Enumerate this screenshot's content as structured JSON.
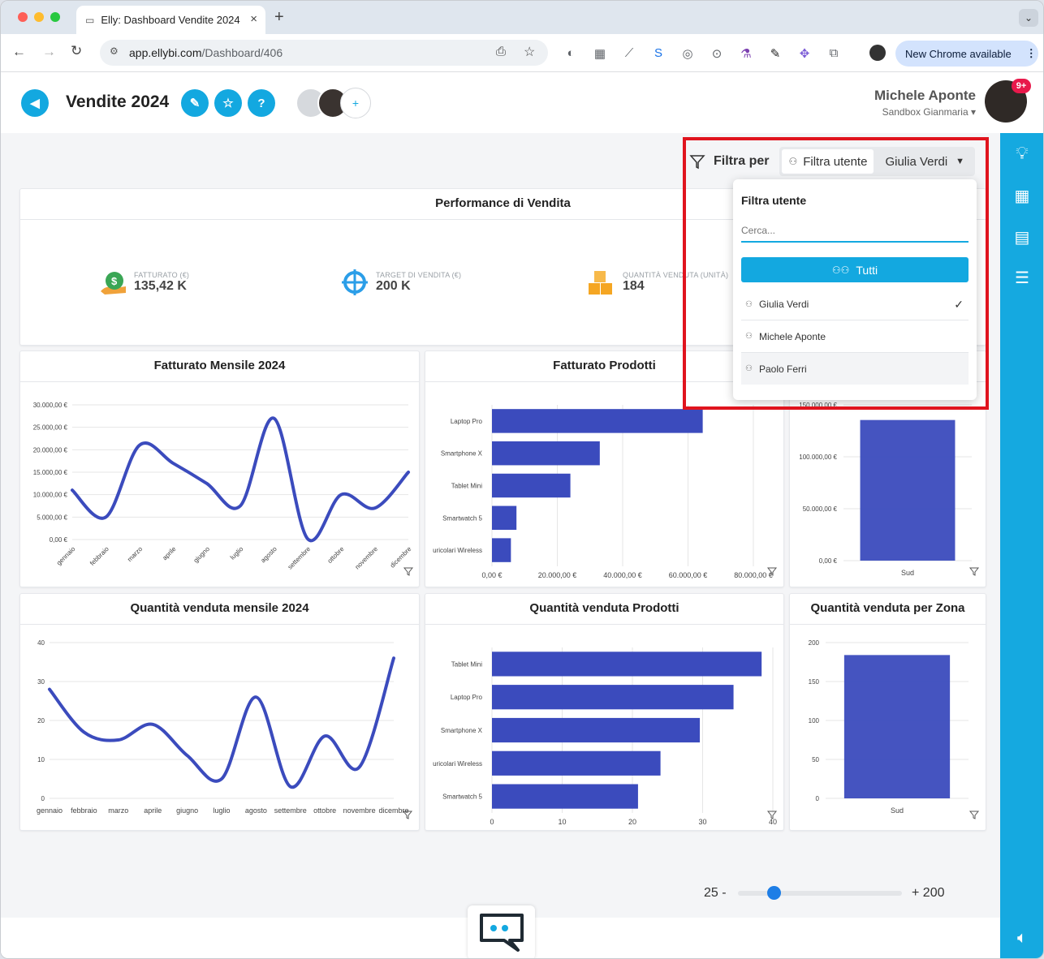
{
  "browser": {
    "tab_title": "Elly: Dashboard Vendite 2024",
    "url_domain": "app.ellybi.com",
    "url_path": "/Dashboard/406",
    "new_chrome": "New Chrome available"
  },
  "header": {
    "title": "Vendite 2024",
    "user_name": "Michele Aponte",
    "workspace": "Sandbox Gianmaria",
    "notif_badge": "9+",
    "add_label": "+",
    "help_label": "?"
  },
  "filter": {
    "label": "Filtra per",
    "chip_label": "Filtra utente",
    "selected": "Giulia Verdi",
    "dropdown_title": "Filtra utente",
    "search_placeholder": "Cerca...",
    "all_label": "Tutti",
    "options": [
      "Giulia Verdi",
      "Michele Aponte",
      "Paolo Ferri"
    ]
  },
  "performance": {
    "title": "Performance di Vendita",
    "kpis": [
      {
        "label": "FATTURATO (€)",
        "value": "135,42 K",
        "icon": "money-bag-icon"
      },
      {
        "label": "TARGET DI VENDITA (€)",
        "value": "200 K",
        "icon": "target-icon"
      },
      {
        "label": "QUANTITÀ VENDUTA (UNITÀ)",
        "value": "184",
        "icon": "boxes-icon"
      }
    ]
  },
  "slider": {
    "min_label": "25 -",
    "max_label": "+ 200",
    "min": 25,
    "max": 200,
    "value": 63
  },
  "colors": {
    "accent": "#13a8e0",
    "series": "#3b4bbd",
    "alert": "#e0141e"
  },
  "chart_data": [
    {
      "type": "line",
      "title": "Fatturato Mensile 2024",
      "categories": [
        "gennaio",
        "febbraio",
        "marzo",
        "aprile",
        "giugno",
        "luglio",
        "agosto",
        "settembre",
        "ottobre",
        "novembre",
        "dicembre"
      ],
      "values": [
        11000,
        5000,
        21000,
        17000,
        12500,
        7500,
        27000,
        200,
        10000,
        7000,
        15000
      ],
      "yticks": [
        "0,00 €",
        "5.000,00 €",
        "10.000,00 €",
        "15.000,00 €",
        "20.000,00 €",
        "25.000,00 €",
        "30.000,00 €"
      ],
      "ylim": [
        0,
        30000
      ]
    },
    {
      "type": "bar",
      "title": "Fatturato Prodotti",
      "categories": [
        "Laptop Pro",
        "Smartphone X",
        "Tablet Mini",
        "Smartwatch 5",
        "uricolari Wireless"
      ],
      "values": [
        64500,
        33000,
        24000,
        7500,
        5800
      ],
      "xticks": [
        "0,00 €",
        "20.000,00 €",
        "40.000,00 €",
        "60.000,00 €",
        "80.000,00 €"
      ],
      "xlim": [
        0,
        80000
      ]
    },
    {
      "type": "bar",
      "title": "",
      "categories": [
        "Sud"
      ],
      "values": [
        135420
      ],
      "yticks": [
        "0,00 €",
        "50.000,00 €",
        "100.000,00 €",
        "150.000,00 €"
      ],
      "ylim": [
        0,
        150000
      ]
    },
    {
      "type": "line",
      "title": "Quantità venduta mensile 2024",
      "categories": [
        "gennaio",
        "febbraio",
        "marzo",
        "aprile",
        "giugno",
        "luglio",
        "agosto",
        "settembre",
        "ottobre",
        "novembre",
        "dicembre"
      ],
      "values": [
        28,
        17,
        15,
        19,
        11,
        5,
        26,
        3,
        16,
        8,
        36
      ],
      "yticks": [
        "0",
        "10",
        "20",
        "30",
        "40"
      ],
      "ylim": [
        0,
        40
      ]
    },
    {
      "type": "bar",
      "title": "Quantità venduta Prodotti",
      "categories": [
        "Tablet Mini",
        "Laptop Pro",
        "Smartphone X",
        "uricolari Wireless",
        "Smartwatch 5"
      ],
      "values": [
        48,
        43,
        37,
        30,
        26
      ],
      "xticks": [
        "0",
        "10",
        "20",
        "30",
        "40"
      ],
      "xlim": [
        0,
        50
      ]
    },
    {
      "type": "bar",
      "title": "Quantità venduta per Zona",
      "categories": [
        "Sud"
      ],
      "values": [
        184
      ],
      "yticks": [
        "0",
        "50",
        "100",
        "150",
        "200"
      ],
      "ylim": [
        0,
        200
      ]
    }
  ]
}
